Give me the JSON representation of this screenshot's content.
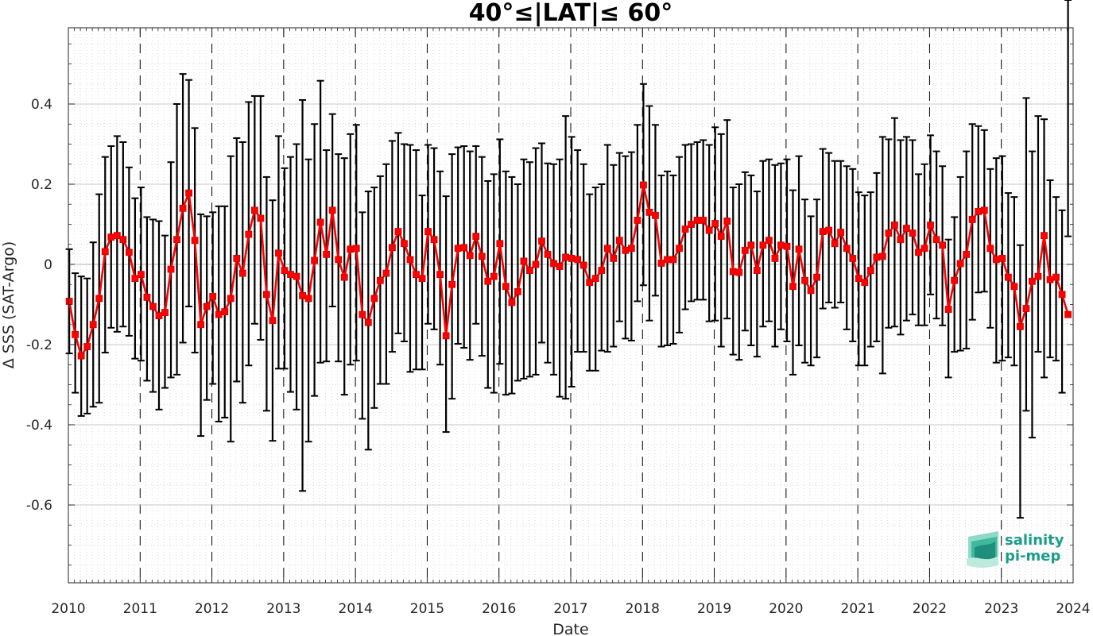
{
  "chart_data": {
    "type": "line",
    "title": "40°≤|LAT|≤ 60°",
    "xlabel": "Date",
    "ylabel": "Δ SSS (SAT-Argo)",
    "xlim": [
      2010,
      2024
    ],
    "ylim": [
      -0.8,
      0.58
    ],
    "x_ticks": [
      2010,
      2011,
      2012,
      2013,
      2014,
      2015,
      2016,
      2017,
      2018,
      2019,
      2020,
      2021,
      2022,
      2023,
      2024
    ],
    "x_tick_labels": [
      "2010",
      "2011",
      "2012",
      "2013",
      "2014",
      "2015",
      "2016",
      "2017",
      "2018",
      "2019",
      "2020",
      "2021",
      "2022",
      "2023",
      "2024"
    ],
    "y_ticks": [
      -0.6,
      -0.4,
      -0.2,
      0,
      0.2,
      0.4
    ],
    "y_tick_labels": [
      "-0.6",
      "-0.4",
      "-0.2",
      "0",
      "0.2",
      "0.4"
    ],
    "grid": "minor dotted, year lines dashed",
    "series_color": "#ff0000",
    "errorbar_color": "#000000",
    "start_year": 2010,
    "months_per_year": 12,
    "values": [
      -0.092,
      -0.175,
      -0.228,
      -0.205,
      -0.15,
      -0.085,
      0.032,
      0.068,
      0.072,
      0.062,
      0.03,
      -0.035,
      -0.025,
      -0.082,
      -0.105,
      -0.128,
      -0.12,
      -0.012,
      0.062,
      0.14,
      0.178,
      0.06,
      -0.15,
      -0.105,
      -0.08,
      -0.125,
      -0.118,
      -0.085,
      0.015,
      -0.022,
      0.075,
      0.135,
      0.115,
      -0.075,
      -0.14,
      0.028,
      -0.015,
      -0.025,
      -0.03,
      -0.078,
      -0.085,
      0.01,
      0.105,
      0.025,
      0.135,
      0.012,
      -0.032,
      0.038,
      0.04,
      -0.125,
      -0.145,
      -0.085,
      -0.04,
      -0.022,
      0.042,
      0.082,
      0.052,
      0.012,
      -0.025,
      -0.035,
      0.082,
      0.062,
      -0.025,
      -0.178,
      -0.05,
      0.04,
      0.042,
      0.022,
      0.07,
      0.02,
      -0.042,
      -0.03,
      0.052,
      -0.055,
      -0.095,
      -0.068,
      0.008,
      -0.015,
      0.0,
      0.058,
      0.025,
      0.002,
      -0.005,
      0.018,
      0.015,
      0.012,
      -0.002,
      -0.045,
      -0.035,
      -0.015,
      0.04,
      0.015,
      0.06,
      0.035,
      0.04,
      0.11,
      0.198,
      0.13,
      0.122,
      0.003,
      0.012,
      0.012,
      0.04,
      0.088,
      0.1,
      0.11,
      0.11,
      0.085,
      0.102,
      0.07,
      0.108,
      -0.018,
      -0.02,
      0.035,
      0.048,
      -0.015,
      0.048,
      0.06,
      0.015,
      0.048,
      0.045,
      -0.055,
      0.038,
      -0.04,
      -0.065,
      -0.032,
      0.082,
      0.085,
      0.052,
      0.08,
      0.04,
      0.015,
      -0.035,
      -0.045,
      -0.015,
      0.018,
      0.02,
      0.078,
      0.098,
      0.062,
      0.09,
      0.078,
      0.03,
      0.04,
      0.098,
      0.062,
      0.048,
      -0.112,
      -0.04,
      0.002,
      0.025,
      0.112,
      0.132,
      0.135,
      0.04,
      0.012,
      0.015,
      -0.032,
      -0.055,
      -0.155,
      -0.11,
      -0.042,
      -0.03,
      0.072,
      -0.038,
      -0.032,
      -0.075,
      -0.125
    ],
    "err_high": [
      0.038,
      -0.022,
      -0.03,
      -0.035,
      0.055,
      0.175,
      0.268,
      0.295,
      0.32,
      0.305,
      0.242,
      0.165,
      0.192,
      0.118,
      0.112,
      0.108,
      0.072,
      0.255,
      0.4,
      0.475,
      0.46,
      0.34,
      0.125,
      0.12,
      0.13,
      0.145,
      0.145,
      0.27,
      0.315,
      0.305,
      0.405,
      0.42,
      0.42,
      0.218,
      0.16,
      0.32,
      0.24,
      0.268,
      0.3,
      0.41,
      0.262,
      0.35,
      0.458,
      0.285,
      0.375,
      0.275,
      0.265,
      0.325,
      0.348,
      0.13,
      0.182,
      0.192,
      0.22,
      0.25,
      0.308,
      0.328,
      0.3,
      0.298,
      0.285,
      0.172,
      0.298,
      0.29,
      0.232,
      0.17,
      0.275,
      0.292,
      0.295,
      0.282,
      0.295,
      0.268,
      0.208,
      0.225,
      0.312,
      0.232,
      0.218,
      0.2,
      0.262,
      0.255,
      0.29,
      0.302,
      0.252,
      0.25,
      0.262,
      0.37,
      0.318,
      0.285,
      0.25,
      0.175,
      0.192,
      0.2,
      0.298,
      0.248,
      0.278,
      0.27,
      0.28,
      0.348,
      0.45,
      0.395,
      0.348,
      0.222,
      0.232,
      0.222,
      0.268,
      0.298,
      0.3,
      0.305,
      0.31,
      0.298,
      0.342,
      0.325,
      0.36,
      0.192,
      0.2,
      0.23,
      0.222,
      0.182,
      0.258,
      0.262,
      0.248,
      0.252,
      0.262,
      0.185,
      0.27,
      0.162,
      0.12,
      0.162,
      0.288,
      0.278,
      0.258,
      0.258,
      0.245,
      0.238,
      0.18,
      0.172,
      0.18,
      0.228,
      0.318,
      0.312,
      0.365,
      0.31,
      0.318,
      0.31,
      0.225,
      0.25,
      0.322,
      0.282,
      0.245,
      0.062,
      0.118,
      0.218,
      0.282,
      0.35,
      0.345,
      0.335,
      0.238,
      0.265,
      0.27,
      0.178,
      0.168,
      0.048,
      0.415,
      0.282,
      0.37,
      0.362,
      0.21,
      0.168,
      0.135,
      0.07
    ],
    "err_low": [
      -0.222,
      -0.32,
      -0.378,
      -0.372,
      -0.355,
      -0.345,
      -0.22,
      -0.158,
      -0.168,
      -0.155,
      -0.178,
      -0.235,
      -0.24,
      -0.29,
      -0.318,
      -0.362,
      -0.308,
      -0.282,
      -0.275,
      -0.195,
      -0.105,
      -0.22,
      -0.428,
      -0.338,
      -0.298,
      -0.392,
      -0.382,
      -0.442,
      -0.292,
      -0.345,
      -0.252,
      -0.148,
      -0.188,
      -0.365,
      -0.44,
      -0.26,
      -0.26,
      -0.318,
      -0.362,
      -0.565,
      -0.442,
      -0.328,
      -0.245,
      -0.242,
      -0.105,
      -0.242,
      -0.325,
      -0.25,
      -0.24,
      -0.385,
      -0.462,
      -0.358,
      -0.298,
      -0.298,
      -0.218,
      -0.172,
      -0.192,
      -0.268,
      -0.262,
      -0.262,
      -0.148,
      -0.162,
      -0.25,
      -0.418,
      -0.335,
      -0.198,
      -0.208,
      -0.238,
      -0.148,
      -0.228,
      -0.308,
      -0.32,
      -0.248,
      -0.325,
      -0.322,
      -0.29,
      -0.285,
      -0.28,
      -0.275,
      -0.195,
      -0.245,
      -0.275,
      -0.33,
      -0.335,
      -0.305,
      -0.218,
      -0.218,
      -0.265,
      -0.265,
      -0.215,
      -0.218,
      -0.205,
      -0.142,
      -0.185,
      -0.19,
      -0.092,
      -0.052,
      -0.14,
      -0.078,
      -0.205,
      -0.202,
      -0.198,
      -0.17,
      -0.112,
      -0.092,
      -0.088,
      -0.088,
      -0.142,
      -0.14,
      -0.205,
      -0.135,
      -0.225,
      -0.238,
      -0.165,
      -0.202,
      -0.23,
      -0.155,
      -0.142,
      -0.205,
      -0.162,
      -0.192,
      -0.275,
      -0.202,
      -0.245,
      -0.252,
      -0.232,
      -0.11,
      -0.095,
      -0.108,
      -0.095,
      -0.162,
      -0.192,
      -0.252,
      -0.252,
      -0.205,
      -0.192,
      -0.272,
      -0.158,
      -0.155,
      -0.175,
      -0.14,
      -0.125,
      -0.152,
      -0.152,
      -0.075,
      -0.135,
      -0.152,
      -0.282,
      -0.218,
      -0.215,
      -0.21,
      -0.138,
      -0.07,
      -0.068,
      -0.158,
      -0.245,
      -0.24,
      -0.232,
      -0.252,
      -0.632,
      -0.365,
      -0.432,
      -0.218,
      -0.282,
      -0.232,
      -0.24,
      -0.32
    ],
    "logo_line1": "salinity",
    "logo_line2": "pi-mep"
  }
}
